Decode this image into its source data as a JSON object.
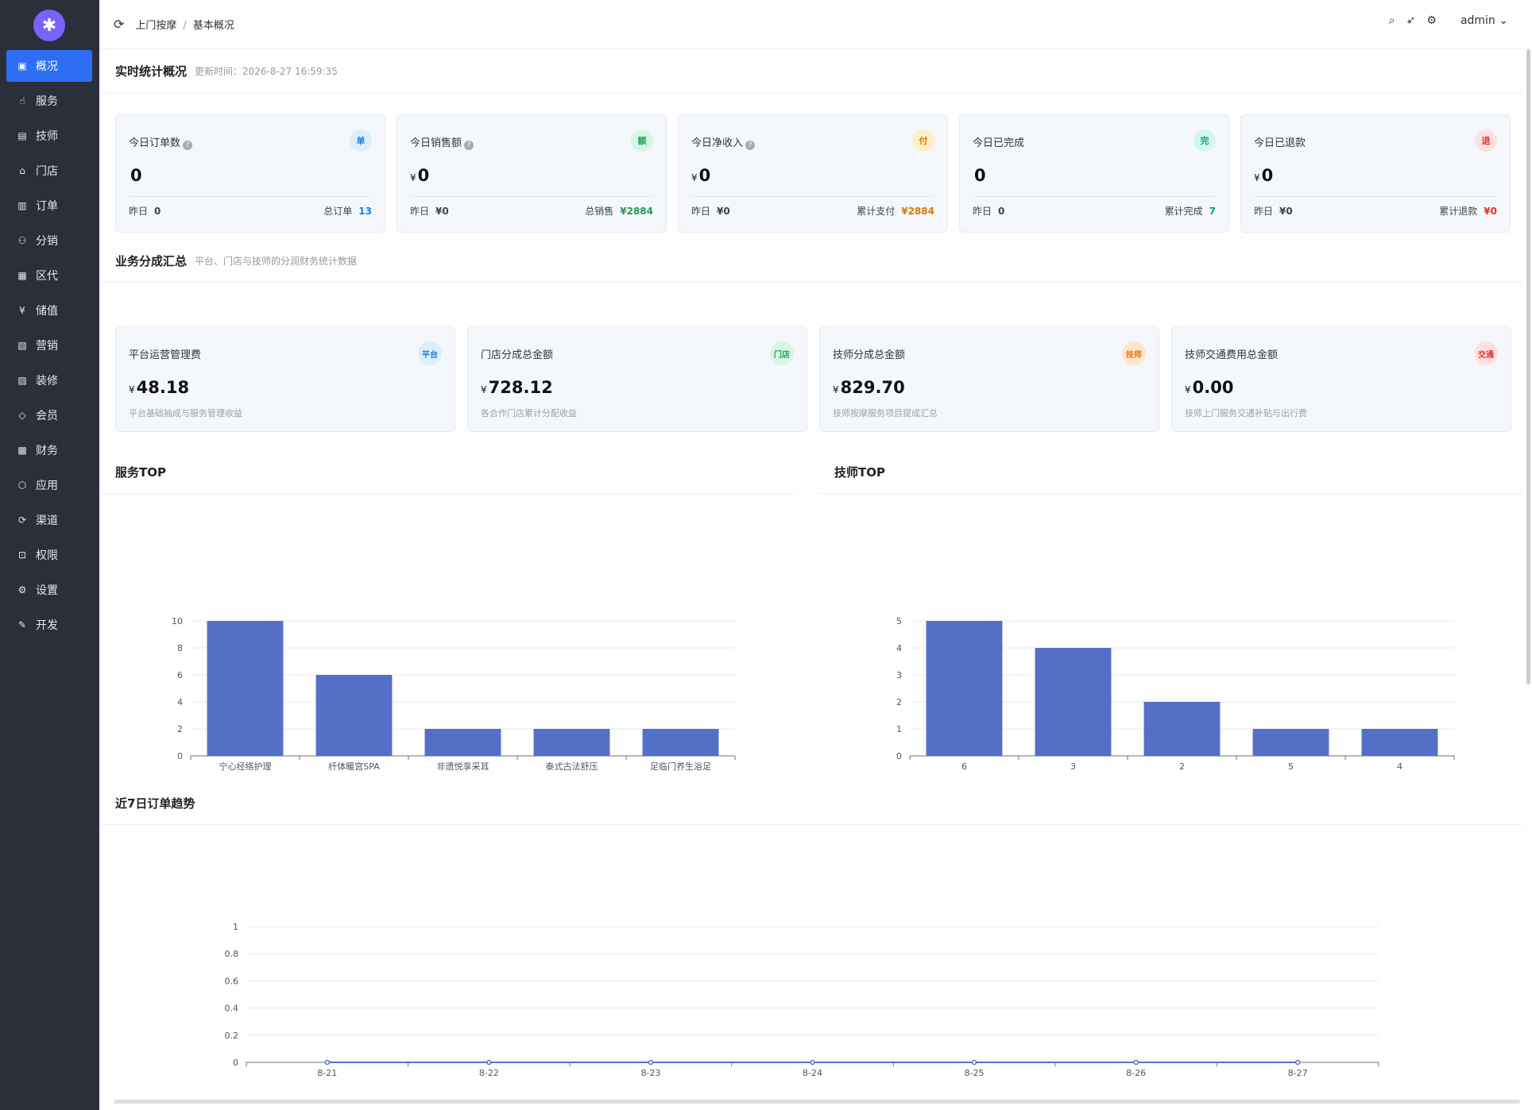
{
  "sidebar": {
    "items": [
      {
        "label": "概况",
        "icon": "chart-icon",
        "glyph": "▣",
        "active": true
      },
      {
        "label": "服务",
        "icon": "hand-icon",
        "glyph": "☝"
      },
      {
        "label": "技师",
        "icon": "id-card-icon",
        "glyph": "▤"
      },
      {
        "label": "门店",
        "icon": "store-icon",
        "glyph": "⌂"
      },
      {
        "label": "订单",
        "icon": "clipboard-icon",
        "glyph": "▥"
      },
      {
        "label": "分销",
        "icon": "network-icon",
        "glyph": "⚇"
      },
      {
        "label": "区代",
        "icon": "map-icon",
        "glyph": "▦"
      },
      {
        "label": "储值",
        "icon": "yen-icon",
        "glyph": "¥"
      },
      {
        "label": "营销",
        "icon": "ticket-icon",
        "glyph": "▧"
      },
      {
        "label": "装修",
        "icon": "brush-icon",
        "glyph": "▨"
      },
      {
        "label": "会员",
        "icon": "diamond-icon",
        "glyph": "◇"
      },
      {
        "label": "财务",
        "icon": "wallet-icon",
        "glyph": "▩"
      },
      {
        "label": "应用",
        "icon": "box-icon",
        "glyph": "⬡"
      },
      {
        "label": "渠道",
        "icon": "cycle-icon",
        "glyph": "⟳"
      },
      {
        "label": "权限",
        "icon": "lock-icon",
        "glyph": "⊡"
      },
      {
        "label": "设置",
        "icon": "gear-icon",
        "glyph": "⚙"
      },
      {
        "label": "开发",
        "icon": "edit-icon",
        "glyph": "✎"
      }
    ]
  },
  "header": {
    "breadcrumb": [
      "上门按摩",
      "基本概况"
    ],
    "sep": "/",
    "user": "admin"
  },
  "realtime": {
    "title": "实时统计概况",
    "update_label": "更新时间：2026-8-27 16:59:35",
    "cards": [
      {
        "label": "今日订单数",
        "help": true,
        "tag": "单",
        "tag_class": "tblue",
        "currency": "",
        "value": "0",
        "yesterday_label": "昨日",
        "yesterday": "0",
        "total_label": "总订单",
        "total": "13",
        "total_color": "#1c7ed6"
      },
      {
        "label": "今日销售额",
        "help": true,
        "tag": "额",
        "tag_class": "tgreen",
        "currency": "¥",
        "value": "0",
        "yesterday_label": "昨日",
        "yesterday": "¥0",
        "total_label": "总销售",
        "total": "¥2884",
        "total_color": "#1f9d55"
      },
      {
        "label": "今日净收入",
        "help": true,
        "tag": "付",
        "tag_class": "torange",
        "currency": "¥",
        "value": "0",
        "yesterday_label": "昨日",
        "yesterday": "¥0",
        "total_label": "累计支付",
        "total": "¥2884",
        "total_color": "#d97706"
      },
      {
        "label": "今日已完成",
        "help": false,
        "tag": "完",
        "tag_class": "tteal",
        "currency": "",
        "value": "0",
        "yesterday_label": "昨日",
        "yesterday": "0",
        "total_label": "累计完成",
        "total": "7",
        "total_color": "#0f9f7f"
      },
      {
        "label": "今日已退款",
        "help": false,
        "tag": "退",
        "tag_class": "tred",
        "currency": "¥",
        "value": "0",
        "yesterday_label": "昨日",
        "yesterday": "¥0",
        "total_label": "累计退款",
        "total": "¥0",
        "total_color": "#e03131"
      }
    ]
  },
  "commission": {
    "title": "业务分成汇总",
    "subtitle": "平台、门店与技师的分润财务统计数据",
    "cards": [
      {
        "label": "平台运营管理费",
        "tag": "平台",
        "tag_class": "tblue",
        "currency": "¥",
        "value": "48.18",
        "desc": "平台基础抽成与服务管理收益"
      },
      {
        "label": "门店分成总金额",
        "tag": "门店",
        "tag_class": "tgreen",
        "currency": "¥",
        "value": "728.12",
        "desc": "各合作门店累计分配收益"
      },
      {
        "label": "技师分成总金额",
        "tag": "技师",
        "tag_class": "tborange",
        "currency": "¥",
        "value": "829.70",
        "desc": "技师按摩服务项目提成汇总"
      },
      {
        "label": "技师交通费用总金额",
        "tag": "交通",
        "tag_class": "tred",
        "currency": "¥",
        "value": "0.00",
        "desc": "技师上门服务交通补贴与出行费"
      }
    ]
  },
  "service_top": {
    "title": "服务TOP"
  },
  "tech_top": {
    "title": "技师TOP"
  },
  "trend": {
    "title": "近7日订单趋势"
  },
  "chart_data": [
    {
      "type": "bar",
      "title": "服务TOP",
      "categories": [
        "宁心经络护理",
        "纤体暖宫SPA",
        "非遗悦享采耳",
        "泰式古法舒压",
        "足临门养生浴足"
      ],
      "values": [
        10,
        6,
        2,
        2,
        2
      ],
      "ylim": [
        0,
        10
      ],
      "yticks": [
        0,
        2,
        4,
        6,
        8,
        10
      ],
      "color": "#5470c6"
    },
    {
      "type": "bar",
      "title": "技师TOP",
      "categories": [
        "6",
        "3",
        "2",
        "5",
        "4"
      ],
      "values": [
        5,
        4,
        2,
        1,
        1
      ],
      "ylim": [
        0,
        5
      ],
      "yticks": [
        0,
        1,
        2,
        3,
        4,
        5
      ],
      "color": "#5470c6"
    },
    {
      "type": "line",
      "title": "近7日订单趋势",
      "categories": [
        "8-21",
        "8-22",
        "8-23",
        "8-24",
        "8-25",
        "8-26",
        "8-27"
      ],
      "values": [
        0,
        0,
        0,
        0,
        0,
        0,
        0
      ],
      "ylim": [
        0,
        1
      ],
      "yticks": [
        "0",
        "0.2",
        "0.4",
        "0.6",
        "0.8",
        "1"
      ],
      "color": "#5470c6"
    }
  ]
}
